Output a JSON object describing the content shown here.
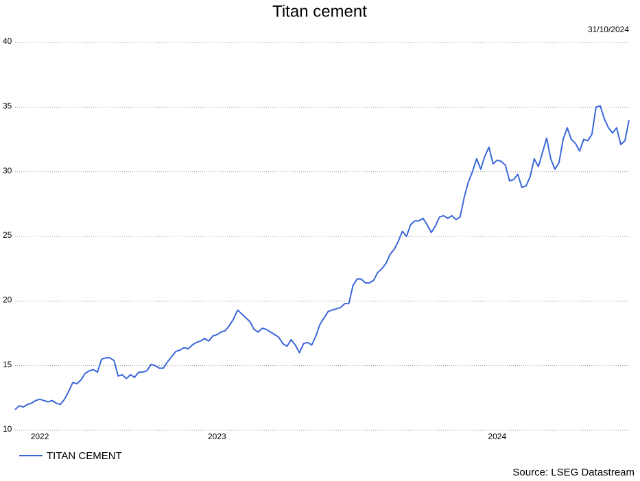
{
  "chart_data": {
    "type": "line",
    "title": "Titan cement",
    "date_label": "31/10/2024",
    "source": "Source: LSEG Datastream",
    "categories": [
      null,
      null,
      null,
      null,
      null,
      null,
      "2022",
      null,
      null,
      null,
      null,
      null,
      null,
      null,
      null,
      null,
      null,
      null,
      null,
      null,
      null,
      null,
      null,
      null,
      null,
      null,
      null,
      null,
      null,
      null,
      null,
      null,
      null,
      null,
      null,
      null,
      null,
      null,
      null,
      null,
      null,
      null,
      null,
      null,
      null,
      null,
      null,
      null,
      null,
      "2023",
      null,
      null,
      null,
      null,
      null,
      null,
      null,
      null,
      null,
      null,
      null,
      null,
      null,
      null,
      null,
      null,
      null,
      null,
      null,
      null,
      null,
      null,
      null,
      null,
      null,
      null,
      null,
      null,
      null,
      null,
      null,
      null,
      null,
      null,
      null,
      null,
      null,
      null,
      null,
      null,
      null,
      null,
      null,
      null,
      null,
      null,
      null,
      null,
      null,
      null,
      null,
      null,
      null,
      null,
      null,
      null,
      null,
      null,
      null,
      null,
      null,
      null,
      null,
      null,
      null,
      null,
      null,
      "2024",
      null,
      null,
      null,
      null,
      null,
      null,
      null,
      null,
      null,
      null,
      null,
      null,
      null,
      null,
      null,
      null,
      null,
      null,
      null,
      null,
      null,
      null,
      null,
      null,
      null,
      null,
      null,
      null,
      null,
      null,
      null,
      null
    ],
    "series": [
      {
        "name": "TITAN CEMENT",
        "color": "#3a66d8",
        "values": [
          11.6,
          11.9,
          11.8,
          12.0,
          12.1,
          12.3,
          12.4,
          12.3,
          12.2,
          12.3,
          12.1,
          12.0,
          12.4,
          13.0,
          13.7,
          13.6,
          13.9,
          14.4,
          14.6,
          14.7,
          14.5,
          15.5,
          15.6,
          15.6,
          15.4,
          14.2,
          14.3,
          14.0,
          14.3,
          14.1,
          14.5,
          14.5,
          14.6,
          15.1,
          15.0,
          14.8,
          14.8,
          15.3,
          15.7,
          16.1,
          16.2,
          16.4,
          16.3,
          16.6,
          16.8,
          16.9,
          17.1,
          16.9,
          17.3,
          17.4,
          17.6,
          17.7,
          18.1,
          18.6,
          19.3,
          19.0,
          18.7,
          18.4,
          17.8,
          17.6,
          17.9,
          17.8,
          17.6,
          17.4,
          17.2,
          16.7,
          16.5,
          17.0,
          16.6,
          16.0,
          16.7,
          16.8,
          16.6,
          17.3,
          18.2,
          18.7,
          19.2,
          19.3,
          19.4,
          19.5,
          19.8,
          19.8,
          21.2,
          21.7,
          21.7,
          21.4,
          21.4,
          21.6,
          22.2,
          22.5,
          22.9,
          23.6,
          24.0,
          24.6,
          25.4,
          25.0,
          25.9,
          26.2,
          26.2,
          26.4,
          25.9,
          25.3,
          25.8,
          26.5,
          26.6,
          26.4,
          26.6,
          26.3,
          26.5,
          28.0,
          29.2,
          30.0,
          31.0,
          30.2,
          31.2,
          31.9,
          30.6,
          30.9,
          30.8,
          30.5,
          29.3,
          29.4,
          29.8,
          28.8,
          28.9,
          29.6,
          31.0,
          30.4,
          31.5,
          32.6,
          31.0,
          30.2,
          30.7,
          32.5,
          33.4,
          32.5,
          32.2,
          31.6,
          32.5,
          32.4,
          32.9,
          35.0,
          35.1,
          34.1,
          33.4,
          33.0,
          33.4,
          32.1,
          32.4,
          34.0
        ]
      }
    ],
    "ylim": [
      10,
      40
    ],
    "yticks": [
      10,
      15,
      20,
      25,
      30,
      35,
      40
    ],
    "grid": true
  }
}
